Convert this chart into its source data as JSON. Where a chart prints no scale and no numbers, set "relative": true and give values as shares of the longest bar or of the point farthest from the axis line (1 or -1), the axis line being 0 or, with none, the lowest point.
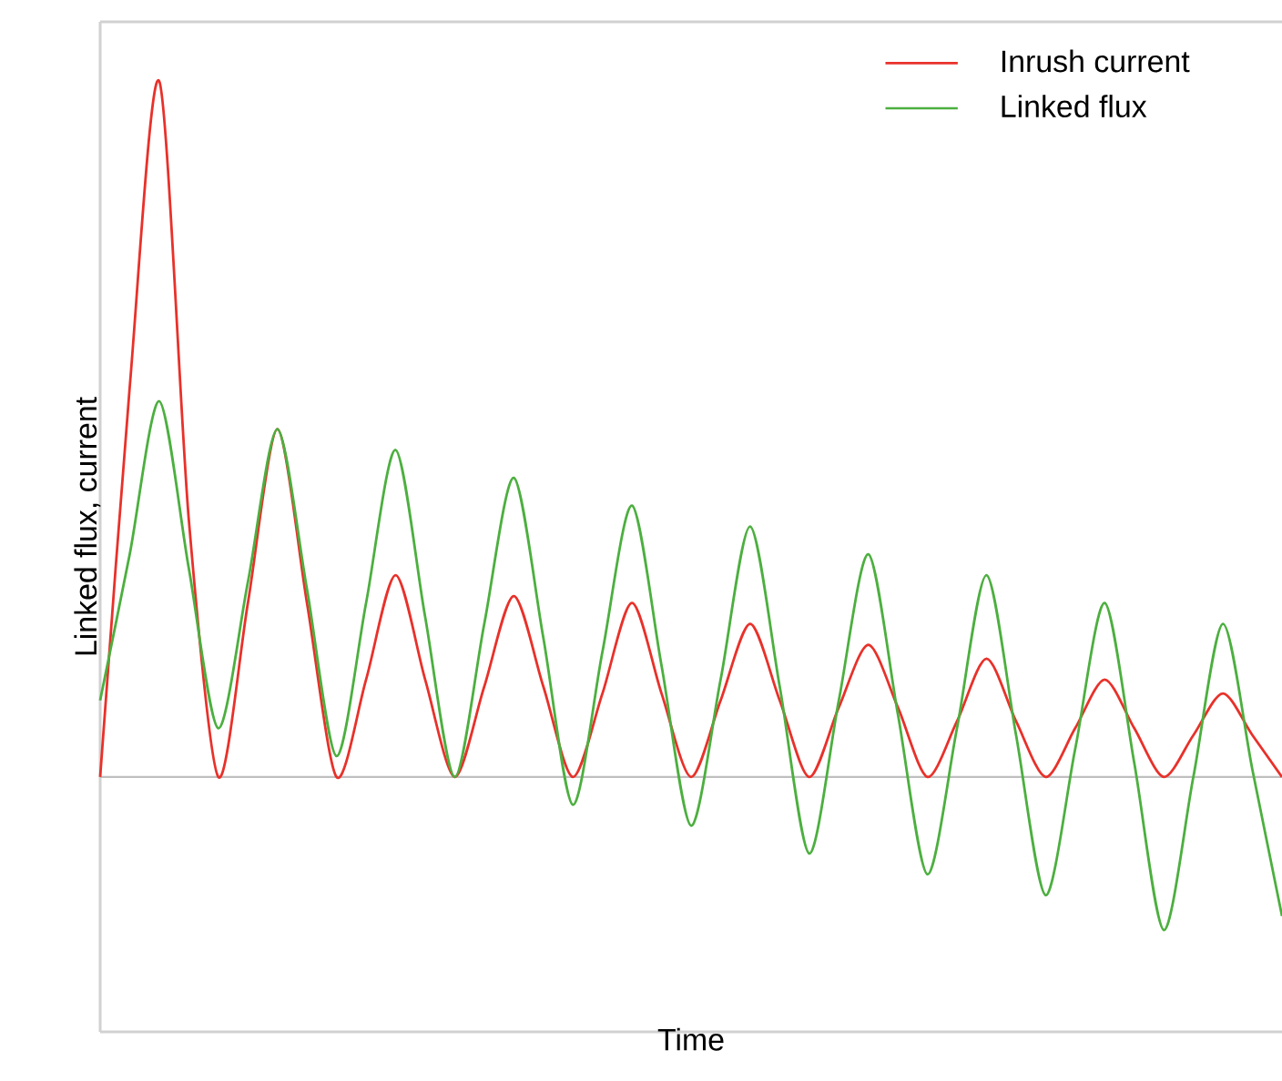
{
  "chart_data": {
    "type": "line",
    "xlabel": "Time",
    "ylabel": "Linked flux, current",
    "relative": true,
    "legend": "top right",
    "marker": "none",
    "line_style": "solid",
    "categories": [
      null,
      null,
      null,
      null,
      null,
      null,
      null,
      null,
      null,
      null,
      null,
      null,
      null,
      null,
      null,
      null,
      null,
      null,
      null,
      null,
      null,
      null,
      null,
      null,
      null,
      null,
      null,
      null,
      null,
      null,
      null,
      null,
      null,
      null,
      null,
      null,
      null,
      null,
      null,
      null,
      null
    ],
    "series": [
      {
        "name": "Inrush current",
        "color": "#e8312a",
        "values": [
          0,
          0.56,
          1,
          0.37,
          0,
          0.25,
          0.5,
          0.25,
          0,
          0.14,
          0.29,
          0.14,
          0,
          0.13,
          0.26,
          0.13,
          0,
          0.12,
          0.25,
          0.12,
          0,
          0.11,
          0.22,
          0.11,
          0,
          0.1,
          0.19,
          0.1,
          0,
          0.08,
          0.17,
          0.08,
          0,
          0.07,
          0.14,
          0.07,
          0,
          0.06,
          0.12,
          0.06,
          0
        ]
      },
      {
        "name": "Linked flux",
        "color": "#4caf3f",
        "values": [
          0.11,
          0.32,
          0.54,
          0.3,
          0.07,
          0.28,
          0.5,
          0.27,
          0.03,
          0.25,
          0.47,
          0.23,
          0,
          0.22,
          0.43,
          0.2,
          -0.04,
          0.18,
          0.39,
          0.16,
          -0.07,
          0.14,
          0.36,
          0.13,
          -0.11,
          0.11,
          0.32,
          0.09,
          -0.14,
          0.07,
          0.29,
          0.06,
          -0.17,
          0.04,
          0.25,
          0.02,
          -0.22,
          0,
          0.22,
          0.01,
          -0.2
        ]
      }
    ]
  }
}
